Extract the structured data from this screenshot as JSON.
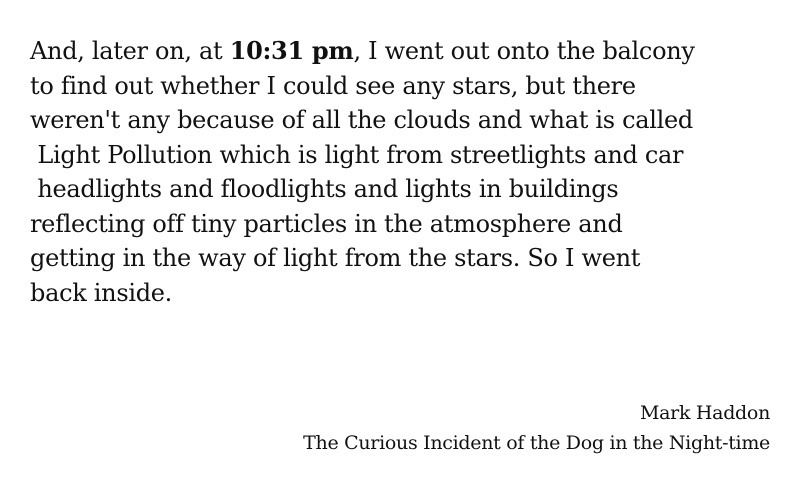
{
  "quote": {
    "line1_before": "And, later on, at ",
    "time": "10:31 pm",
    "line1_after": ", I went out onto the balcony",
    "line2": "to find out whether I could see any stars, but there",
    "line3": "weren't any because of all the clouds and what is called",
    "line4": " Light Pollution which is light from streetlights and car",
    "line5": " headlights and floodlights and lights in buildings",
    "line6": "reflecting off tiny particles in the atmosphere and",
    "line7": "getting in the way of light from the stars. So I went",
    "line8": "back inside."
  },
  "attribution": {
    "author": "Mark Haddon",
    "book": "The Curious Incident of the Dog in the Night-time"
  }
}
